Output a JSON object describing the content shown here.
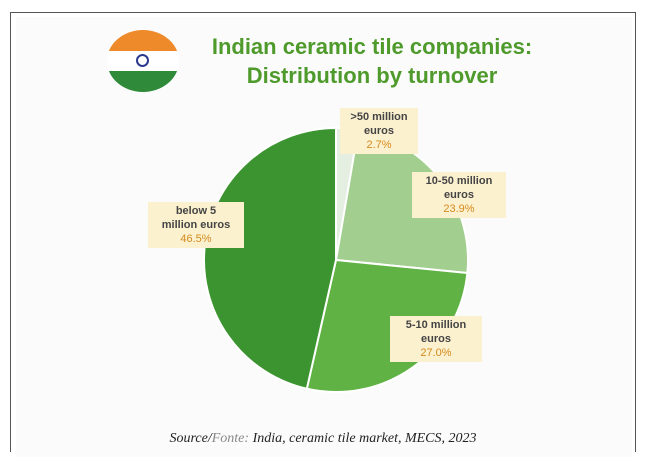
{
  "title_line1": "Indian ceramic tile companies:",
  "title_line2": "Distribution by turnover",
  "source_prefix": "Source/",
  "source_fonte": "Fonte:",
  "source_rest": " India, ceramic tile market, MECS, 2023",
  "flag_colors": {
    "saffron": "#ee8a2a",
    "white": "#ffffff",
    "green": "#2f8a3a",
    "chakra": "#2b3a8f"
  },
  "chart_data": {
    "type": "pie",
    "title": "Indian ceramic tile companies: Distribution by turnover",
    "slices": [
      {
        "label_line1": ">50 million",
        "label_line2": "euros",
        "value": 2.7,
        "display": "2.7%",
        "color": "#e4eee1"
      },
      {
        "label_line1": "10-50 million",
        "label_line2": "euros",
        "value": 23.9,
        "display": "23.9%",
        "color": "#a2cf8f"
      },
      {
        "label_line1": "5-10 million",
        "label_line2": "euros",
        "value": 27.0,
        "display": "27.0%",
        "color": "#5fb243"
      },
      {
        "label_line1": "below 5",
        "label_line2": "million euros",
        "value": 46.5,
        "display": "46.5%",
        "color": "#3c9430"
      }
    ]
  }
}
